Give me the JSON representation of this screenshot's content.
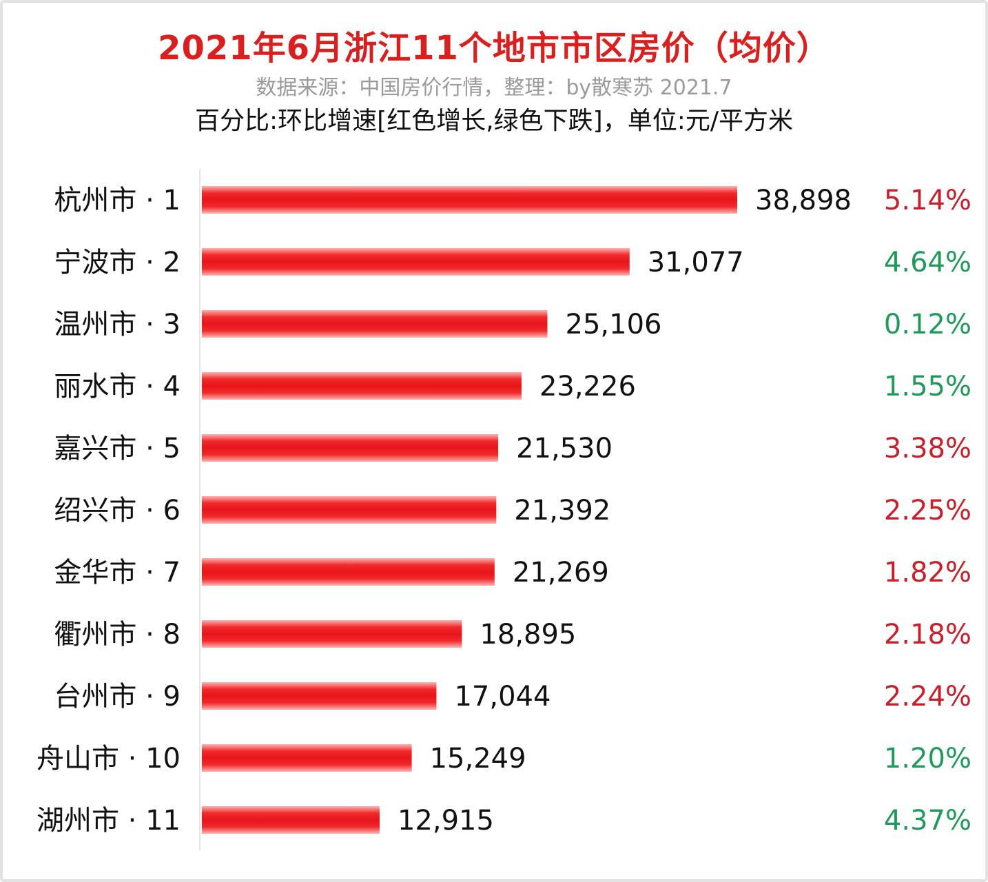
{
  "colors": {
    "bar": "#e8141b",
    "increase": "#c8202a",
    "decrease": "#1f9a5a"
  },
  "chart_data": {
    "type": "bar",
    "orientation": "horizontal",
    "title": "2021年6月浙江11个地市市区房价（均价）",
    "subtitle": "数据来源：中国房价行情，整理：by散寒苏 2021.7",
    "note": "百分比:环比增速[红色增长,绿色下跌]，单位:元/平方米",
    "categories": [
      "杭州市 · 1",
      "宁波市 · 2",
      "温州市 · 3",
      "丽水市 · 4",
      "嘉兴市 · 5",
      "绍兴市 · 6",
      "金华市 · 7",
      "衢州市 · 8",
      "台州市 · 9",
      "舟山市 · 10",
      "湖州市 · 11"
    ],
    "values": [
      38898,
      31077,
      25106,
      23226,
      21530,
      21392,
      21269,
      18895,
      17044,
      15249,
      12915
    ],
    "value_labels": [
      "38,898",
      "31,077",
      "25,106",
      "23,226",
      "21,530",
      "21,392",
      "21,269",
      "18,895",
      "17,044",
      "15,249",
      "12,915"
    ],
    "mom_change": [
      "5.14%",
      "4.64%",
      "0.12%",
      "1.55%",
      "3.38%",
      "2.25%",
      "1.82%",
      "2.18%",
      "2.24%",
      "1.20%",
      "4.37%"
    ],
    "mom_direction": [
      "up",
      "down",
      "down",
      "down",
      "up",
      "up",
      "up",
      "up",
      "up",
      "down",
      "down"
    ],
    "xlim": [
      0,
      38898
    ],
    "grid": false,
    "legend": "none"
  }
}
